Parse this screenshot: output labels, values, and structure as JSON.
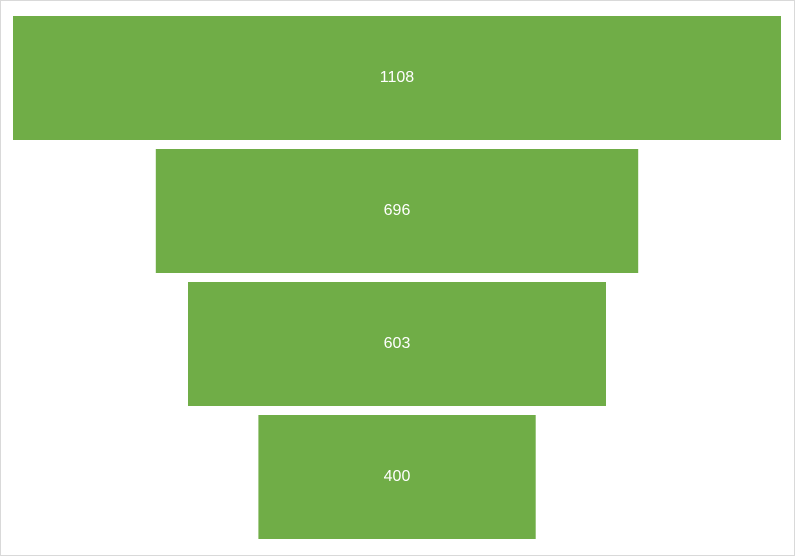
{
  "chart_data": {
    "type": "funnel",
    "values": [
      1108,
      696,
      603,
      400
    ],
    "data_labels": [
      "1108",
      "696",
      "603",
      "400"
    ],
    "bar_color": "#70AD47",
    "label_color": "#FFFFFF"
  }
}
